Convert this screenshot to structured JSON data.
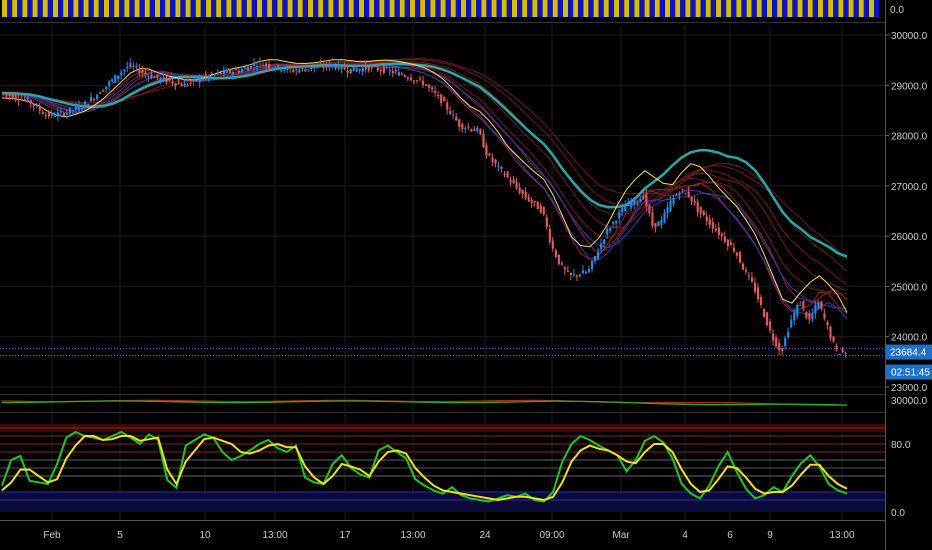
{
  "chart_data": [
    {
      "type": "bar",
      "panel": "top-indicator",
      "price_scale_label": "0.0",
      "colors": [
        "#d4c000",
        "#1010c8"
      ]
    },
    {
      "type": "line",
      "panel": "price",
      "subtype": "candlestick",
      "x_ticks": [
        "Feb",
        "5",
        "10",
        "13:00",
        "17",
        "13:00",
        "24",
        "09:00",
        "Mar",
        "4",
        "6",
        "9",
        "13:00"
      ],
      "y_ticks": [
        "30000.0",
        "29000.0",
        "28000.0",
        "27000.0",
        "26000.0",
        "25000.0",
        "24000.0",
        "23000.0"
      ],
      "ylim": [
        22900,
        30200
      ],
      "last_price": "23684.4",
      "countdown": "02:51:45",
      "close_trend": [
        [
          0,
          28850
        ],
        [
          3,
          28700
        ],
        [
          5,
          28400
        ],
        [
          7,
          28450
        ],
        [
          9,
          28600
        ],
        [
          11,
          28900
        ],
        [
          13,
          29250
        ],
        [
          14,
          29400
        ],
        [
          16,
          29200
        ],
        [
          18,
          29100
        ],
        [
          20,
          29000
        ],
        [
          22,
          29150
        ],
        [
          24,
          29250
        ],
        [
          26,
          29300
        ],
        [
          28,
          29450
        ],
        [
          30,
          29350
        ],
        [
          32,
          29300
        ],
        [
          34,
          29350
        ],
        [
          36,
          29400
        ],
        [
          38,
          29300
        ],
        [
          40,
          29350
        ],
        [
          42,
          29300
        ],
        [
          44,
          29200
        ],
        [
          46,
          29050
        ],
        [
          48,
          28700
        ],
        [
          50,
          28200
        ],
        [
          52,
          28100
        ],
        [
          53,
          27600
        ],
        [
          55,
          27200
        ],
        [
          57,
          26800
        ],
        [
          59,
          26500
        ],
        [
          60,
          25800
        ],
        [
          61,
          25400
        ],
        [
          62,
          25200
        ],
        [
          64,
          25300
        ],
        [
          65,
          25700
        ],
        [
          66,
          26100
        ],
        [
          68,
          26600
        ],
        [
          70,
          26800
        ],
        [
          71,
          26200
        ],
        [
          72,
          26300
        ],
        [
          73,
          26700
        ],
        [
          74,
          26900
        ],
        [
          75,
          26800
        ],
        [
          76,
          26500
        ],
        [
          78,
          26100
        ],
        [
          80,
          25700
        ],
        [
          81,
          25300
        ],
        [
          82,
          25000
        ],
        [
          83,
          24500
        ],
        [
          84,
          24000
        ],
        [
          85,
          23700
        ],
        [
          86,
          24300
        ],
        [
          87,
          24700
        ],
        [
          88,
          24300
        ],
        [
          89,
          24700
        ],
        [
          90,
          24200
        ],
        [
          91,
          23700
        ],
        [
          92,
          23684
        ]
      ],
      "series": [
        {
          "name": "",
          "color": "#f0e060",
          "offsets": [
            -100,
            -30,
            60,
            150,
            250,
            500,
            600,
            700,
            620
          ]
        },
        {
          "name": "",
          "color": "#c03030",
          "offsets": [
            -50,
            0,
            40,
            120,
            250,
            550,
            750,
            900,
            980
          ]
        },
        {
          "name": "",
          "color": "#2aa8a8",
          "offsets": [
            0,
            0,
            0,
            50,
            180,
            600,
            950,
            1250,
            1450
          ]
        }
      ]
    },
    {
      "type": "line",
      "panel": "oscillator-mini",
      "y_ticks": [
        "30000.0"
      ],
      "colors": [
        "#c02020",
        "#20b020"
      ]
    },
    {
      "type": "line",
      "panel": "stochastic",
      "y_ticks": [
        "80.0",
        "0.0"
      ],
      "ylim": [
        0,
        100
      ],
      "series": [
        {
          "name": "",
          "color": "#22c822",
          "values": [
            28,
            60,
            65,
            34,
            32,
            30,
            55,
            88,
            95,
            90,
            88,
            85,
            90,
            95,
            88,
            80,
            92,
            85,
            35,
            25,
            78,
            85,
            92,
            88,
            70,
            60,
            65,
            72,
            80,
            85,
            75,
            70,
            78,
            38,
            32,
            30,
            55,
            66,
            50,
            42,
            38,
            72,
            78,
            70,
            62,
            36,
            28,
            22,
            18,
            26,
            16,
            12,
            10,
            8,
            12,
            16,
            14,
            18,
            10,
            8,
            20,
            58,
            80,
            90,
            85,
            78,
            72,
            66,
            46,
            60,
            84,
            90,
            82,
            62,
            30,
            18,
            12,
            28,
            52,
            70,
            45,
            24,
            12,
            16,
            26,
            20,
            40,
            56,
            66,
            52,
            30,
            22,
            18
          ]
        },
        {
          "name": "",
          "color": "#f0e020",
          "values": [
            22,
            32,
            48,
            48,
            40,
            32,
            36,
            62,
            78,
            90,
            90,
            85,
            86,
            90,
            90,
            84,
            86,
            88,
            48,
            30,
            58,
            72,
            86,
            88,
            84,
            80,
            70,
            68,
            72,
            78,
            80,
            76,
            76,
            52,
            38,
            30,
            40,
            55,
            52,
            48,
            40,
            58,
            70,
            72,
            68,
            50,
            38,
            28,
            22,
            20,
            18,
            16,
            14,
            12,
            10,
            12,
            14,
            14,
            12,
            10,
            14,
            32,
            58,
            72,
            78,
            74,
            72,
            66,
            58,
            56,
            70,
            80,
            80,
            70,
            48,
            30,
            20,
            22,
            36,
            52,
            50,
            38,
            24,
            18,
            20,
            20,
            28,
            42,
            54,
            54,
            40,
            30,
            24
          ]
        }
      ]
    }
  ]
}
